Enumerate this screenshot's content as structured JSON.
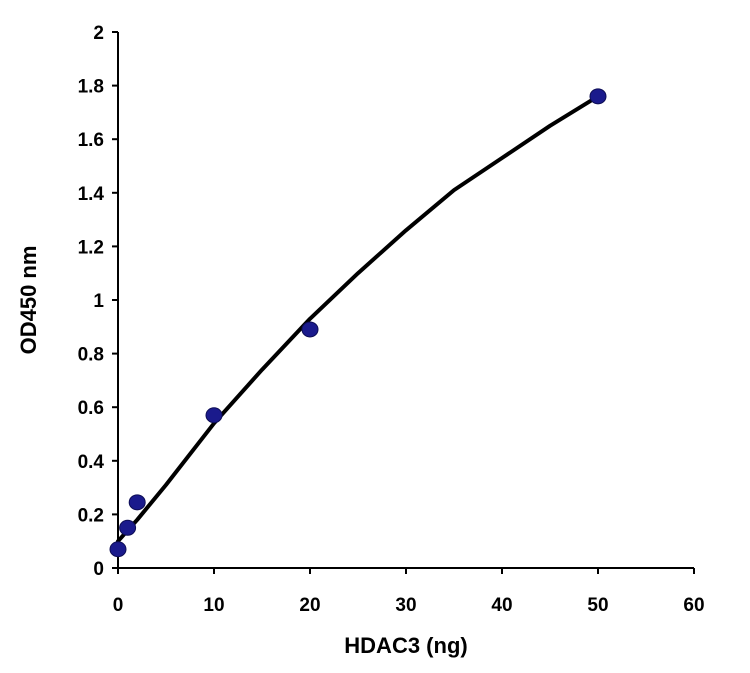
{
  "chart_data": {
    "type": "scatter",
    "title": "",
    "xlabel": "HDAC3 (ng)",
    "ylabel": "OD450 nm",
    "xlim": [
      0,
      60
    ],
    "ylim": [
      0,
      2
    ],
    "x_ticks": [
      0,
      10,
      20,
      30,
      40,
      50,
      60
    ],
    "y_ticks": [
      0,
      0.2,
      0.4,
      0.6,
      0.8,
      1,
      1.2,
      1.4,
      1.6,
      1.8,
      2
    ],
    "grid": false,
    "legend": "none",
    "series": [
      {
        "kind": "points",
        "color": "#1a1a8c",
        "x": [
          0,
          1,
          2,
          10,
          20,
          50
        ],
        "y": [
          0.07,
          0.15,
          0.245,
          0.57,
          0.89,
          1.76
        ]
      },
      {
        "kind": "fit-line",
        "color": "#000000",
        "x": [
          0,
          1,
          2,
          5,
          10,
          15,
          20,
          25,
          30,
          35,
          40,
          45,
          50
        ],
        "y": [
          0.1,
          0.14,
          0.18,
          0.31,
          0.54,
          0.74,
          0.93,
          1.1,
          1.26,
          1.41,
          1.53,
          1.65,
          1.76
        ]
      }
    ]
  }
}
